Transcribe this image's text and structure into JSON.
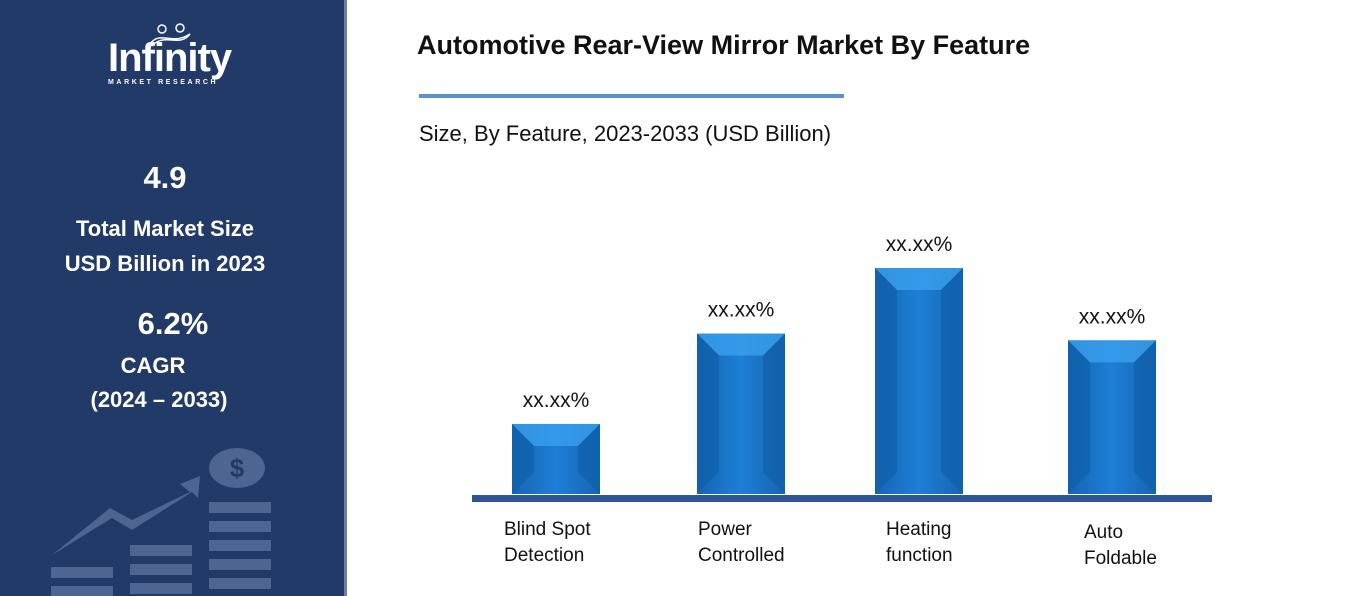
{
  "sidebar": {
    "logo": {
      "word": "Infinity",
      "sub": "MARKET RESEARCH"
    },
    "market_size_value": "4.9",
    "market_size_label_1": "Total Market Size",
    "market_size_label_2": "USD Billion in 2023",
    "cagr_value": "6.2%",
    "cagr_label": "CAGR",
    "cagr_period": "(2024 – 2033)"
  },
  "header": {
    "title": "Automotive Rear-View Mirror Market By Feature",
    "subtitle": "Size, By Feature, 2023-2033 (USD Billion)"
  },
  "chart_data": {
    "type": "bar",
    "categories": [
      [
        "Blind Spot",
        "Detection"
      ],
      [
        "Power",
        "Controlled"
      ],
      [
        "Heating",
        "function"
      ],
      [
        "Auto",
        "Foldable"
      ]
    ],
    "values": [
      0.31,
      0.71,
      1.0,
      0.68
    ],
    "data_labels": [
      "xx.xx%",
      "xx.xx%",
      "xx.xx%",
      "xx.xx%"
    ],
    "title": "Automotive Rear-View Mirror Market By Feature",
    "subtitle": "Size, By Feature, 2023-2033 (USD Billion)",
    "grid": false,
    "bar_color": "#1a73c4",
    "axis_color": "#2f5597"
  }
}
